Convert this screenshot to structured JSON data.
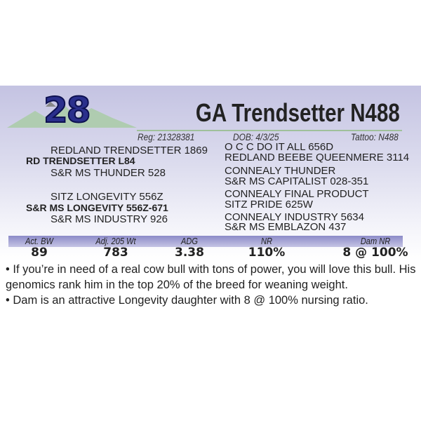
{
  "lot_number": "28",
  "title": "GA Trendsetter N488",
  "reg": "Reg: 21328381",
  "dob": "DOB:  4/3/25",
  "tattoo": "Tattoo:  N488",
  "pedigree": {
    "sire_sire": "REDLAND TRENDSETTER 1869",
    "sire": "RD TRENDSETTER L84",
    "sire_dam": "S&R MS THUNDER 528",
    "dam_sire": "SITZ LONGEVITY 556Z",
    "dam": "S&R MS LONGEVITY 556Z-671",
    "dam_dam": "S&R MS INDUSTRY 926",
    "right": [
      "O C C DO IT ALL 656D",
      "REDLAND BEEBE QUEENMERE 3114",
      "CONNEALY THUNDER",
      "S&R MS CAPITALIST 028-351",
      "CONNEALY FINAL PRODUCT",
      "SITZ PRIDE 625W",
      "CONNEALY INDUSTRY 5634",
      "S&R MS EMBLAZON 437"
    ]
  },
  "stats": [
    {
      "label": "Act. BW",
      "value": "89"
    },
    {
      "label": "Adj. 205 Wt",
      "value": "783"
    },
    {
      "label": "ADG",
      "value": "3.38"
    },
    {
      "label": "NR",
      "value": "110%"
    },
    {
      "label": "Dam NR",
      "value": "8 @ 100%"
    }
  ],
  "description": [
    "• If you’re in need of a real cow bull with tons of power, you will love this bull.  His genomics rank him in the top 20% of the breed for weaning weight.",
    "• Dam is an attractive Longevity daughter with 8 @ 100% nursing ratio."
  ],
  "colors": {
    "lot_number": "#2a2f8c",
    "mountains": "#9fc09a",
    "band": "#8c8bc8"
  }
}
